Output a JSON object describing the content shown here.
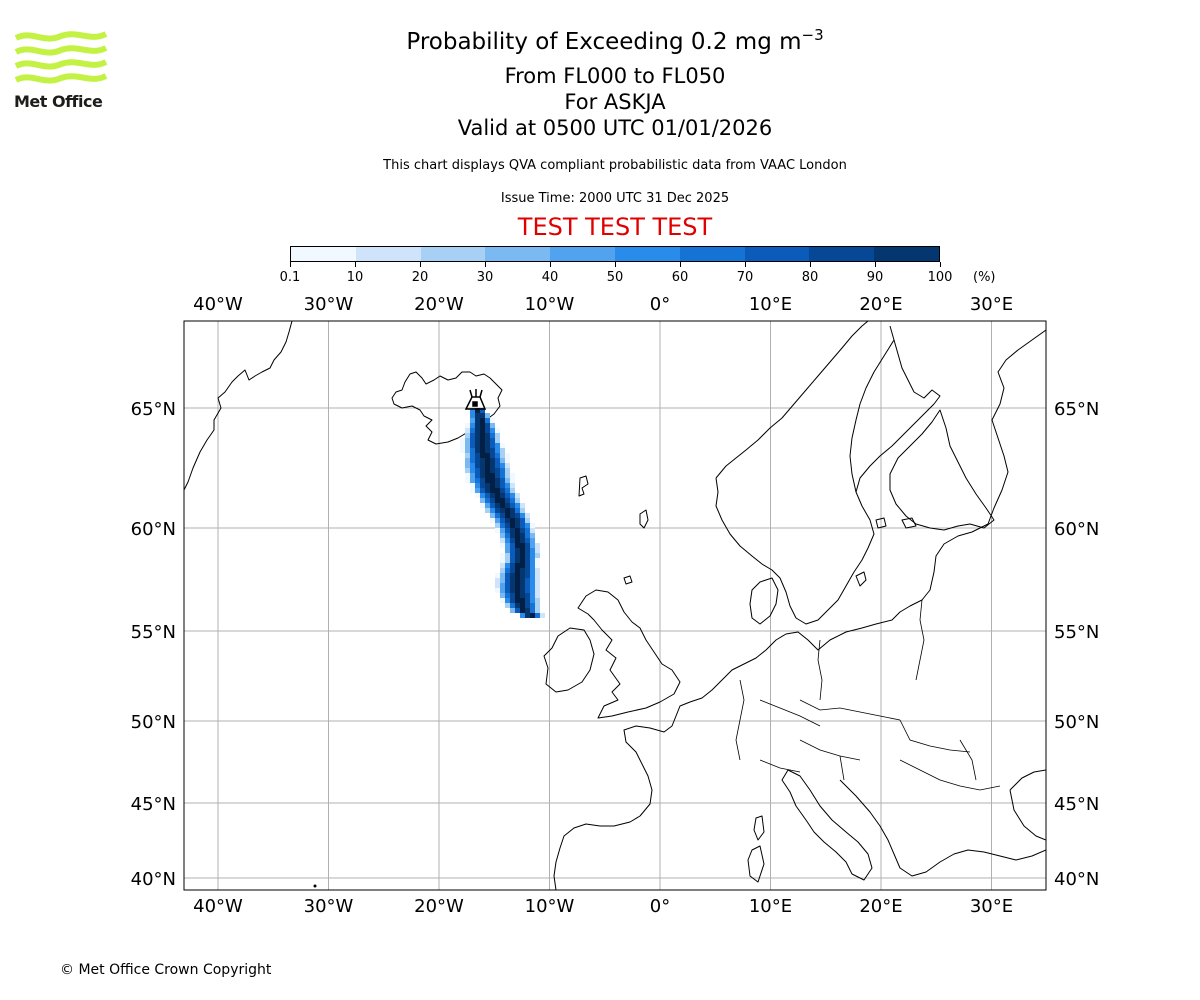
{
  "header": {
    "title_main": "Probability of Exceeding 0.2 mg m",
    "title_superscript": "−3",
    "flight_levels": "From FL000 to FL050",
    "volcano": "For ASKJA",
    "valid_time": "Valid at 0500 UTC 01/01/2026",
    "disclaimer": "This chart displays QVA compliant probabilistic data from VAAC London",
    "issue_time": "Issue Time: 2000 UTC 31 Dec 2025",
    "test_banner": "TEST TEST TEST"
  },
  "logo": {
    "text": "Met Office",
    "color": "#c3f244"
  },
  "colorbar": {
    "labels": [
      "0.1",
      "10",
      "20",
      "30",
      "40",
      "50",
      "60",
      "70",
      "80",
      "90",
      "100"
    ],
    "unit": "(%)",
    "colors": [
      "#f2f8ff",
      "#cfe4fa",
      "#a8d0f5",
      "#7ab9f1",
      "#52a3ef",
      "#2a8cea",
      "#1673d6",
      "#0b5cba",
      "#074896",
      "#043670",
      "#021f46"
    ]
  },
  "map": {
    "lon_labels": [
      "40°W",
      "30°W",
      "20°W",
      "10°W",
      "0°",
      "10°E",
      "20°E",
      "30°E"
    ],
    "lat_labels": [
      "65°N",
      "60°N",
      "55°N",
      "50°N",
      "45°N",
      "40°N"
    ],
    "lon_values": [
      -40,
      -30,
      -20,
      -10,
      0,
      10,
      20,
      30
    ],
    "lat_values": [
      65,
      60,
      55,
      50,
      45,
      40
    ],
    "volcano_marker": "volcano-icon",
    "plume_probability_max": 100
  },
  "footer": {
    "copyright": "© Met Office Crown Copyright"
  }
}
